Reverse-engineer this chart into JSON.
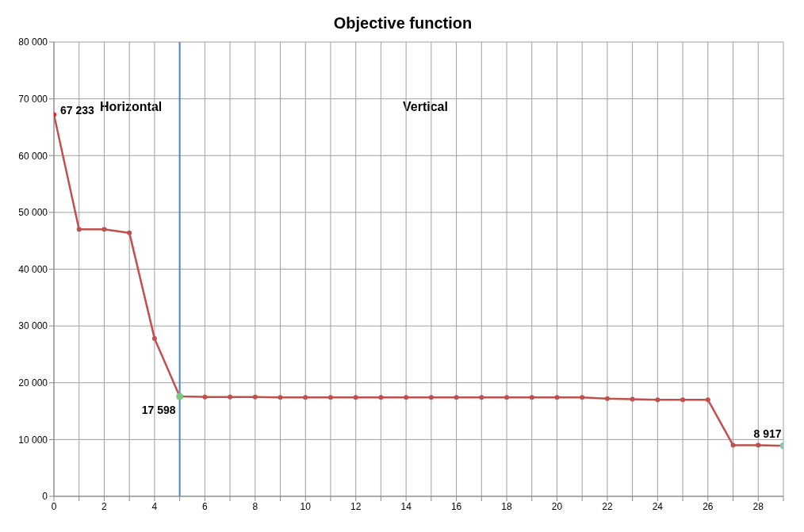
{
  "chart_data": {
    "type": "line",
    "title": "Objective function",
    "x": [
      0,
      1,
      2,
      3,
      4,
      5,
      6,
      7,
      8,
      9,
      10,
      11,
      12,
      13,
      14,
      15,
      16,
      17,
      18,
      19,
      20,
      21,
      22,
      23,
      24,
      25,
      26,
      27,
      28,
      29
    ],
    "series": [
      {
        "color": "#c0504d",
        "values": [
          67233,
          47000,
          47000,
          46400,
          27800,
          17598,
          17500,
          17500,
          17500,
          17400,
          17400,
          17400,
          17400,
          17400,
          17400,
          17400,
          17400,
          17400,
          17400,
          17400,
          17400,
          17400,
          17200,
          17100,
          17000,
          17000,
          17000,
          9000,
          9000,
          8917
        ],
        "colors": [
          "#e02020",
          "#c0504d",
          "#c0504d",
          "#c0504d",
          "#c0504d",
          "#7fc97f",
          "#c0504d",
          "#c0504d",
          "#c0504d",
          "#c0504d",
          "#c0504d",
          "#c0504d",
          "#c0504d",
          "#c0504d",
          "#c0504d",
          "#c0504d",
          "#c0504d",
          "#c0504d",
          "#c0504d",
          "#c0504d",
          "#c0504d",
          "#c0504d",
          "#c0504d",
          "#c0504d",
          "#c0504d",
          "#c0504d",
          "#c0504d",
          "#c0504d",
          "#c0504d",
          "#7fcab8"
        ],
        "value_labels": [
          "67 233",
          null,
          null,
          null,
          null,
          "17 598",
          null,
          null,
          null,
          null,
          null,
          null,
          null,
          null,
          null,
          null,
          null,
          null,
          null,
          null,
          null,
          null,
          null,
          null,
          null,
          null,
          null,
          null,
          null,
          "8 917"
        ]
      }
    ],
    "xlim": [
      0,
      29
    ],
    "xticks": [
      0,
      {
        "value": 1,
        "label": null
      },
      2,
      {
        "value": 3,
        "label": null
      },
      4,
      {
        "value": 5,
        "label": null
      },
      6,
      {
        "value": 7,
        "label": null
      },
      8,
      {
        "value": 9,
        "label": null
      },
      10,
      {
        "value": 11,
        "label": null
      },
      12,
      {
        "value": 13,
        "label": null
      },
      14,
      {
        "value": 15,
        "label": null
      },
      16,
      {
        "value": 17,
        "label": null
      },
      18,
      {
        "value": 19,
        "label": null
      },
      20,
      {
        "value": 21,
        "label": null
      },
      22,
      {
        "value": 23,
        "label": null
      },
      24,
      {
        "value": 25,
        "label": null
      },
      26,
      {
        "value": 27,
        "label": null
      },
      28,
      {
        "value": 29,
        "label": null
      }
    ],
    "ylim": [
      0,
      80000
    ],
    "yticks": [
      0,
      {
        "value": 10000,
        "label": "10 000"
      },
      {
        "value": 20000,
        "label": "20 000"
      },
      {
        "value": 30000,
        "label": "30 000"
      },
      {
        "value": 40000,
        "label": "40 000"
      },
      {
        "value": 50000,
        "label": "50 000"
      },
      {
        "value": 60000,
        "label": "60 000"
      },
      {
        "value": 70000,
        "label": "70 000"
      },
      {
        "value": 80000,
        "label": "80 000"
      }
    ],
    "ref_lines": [
      {
        "axis": "x",
        "value": 5,
        "color": "#4a86c8"
      }
    ],
    "annotations": [
      "Horizontal",
      "Vertical"
    ],
    "grid": true,
    "marker": "circle",
    "line_style": "solid"
  }
}
